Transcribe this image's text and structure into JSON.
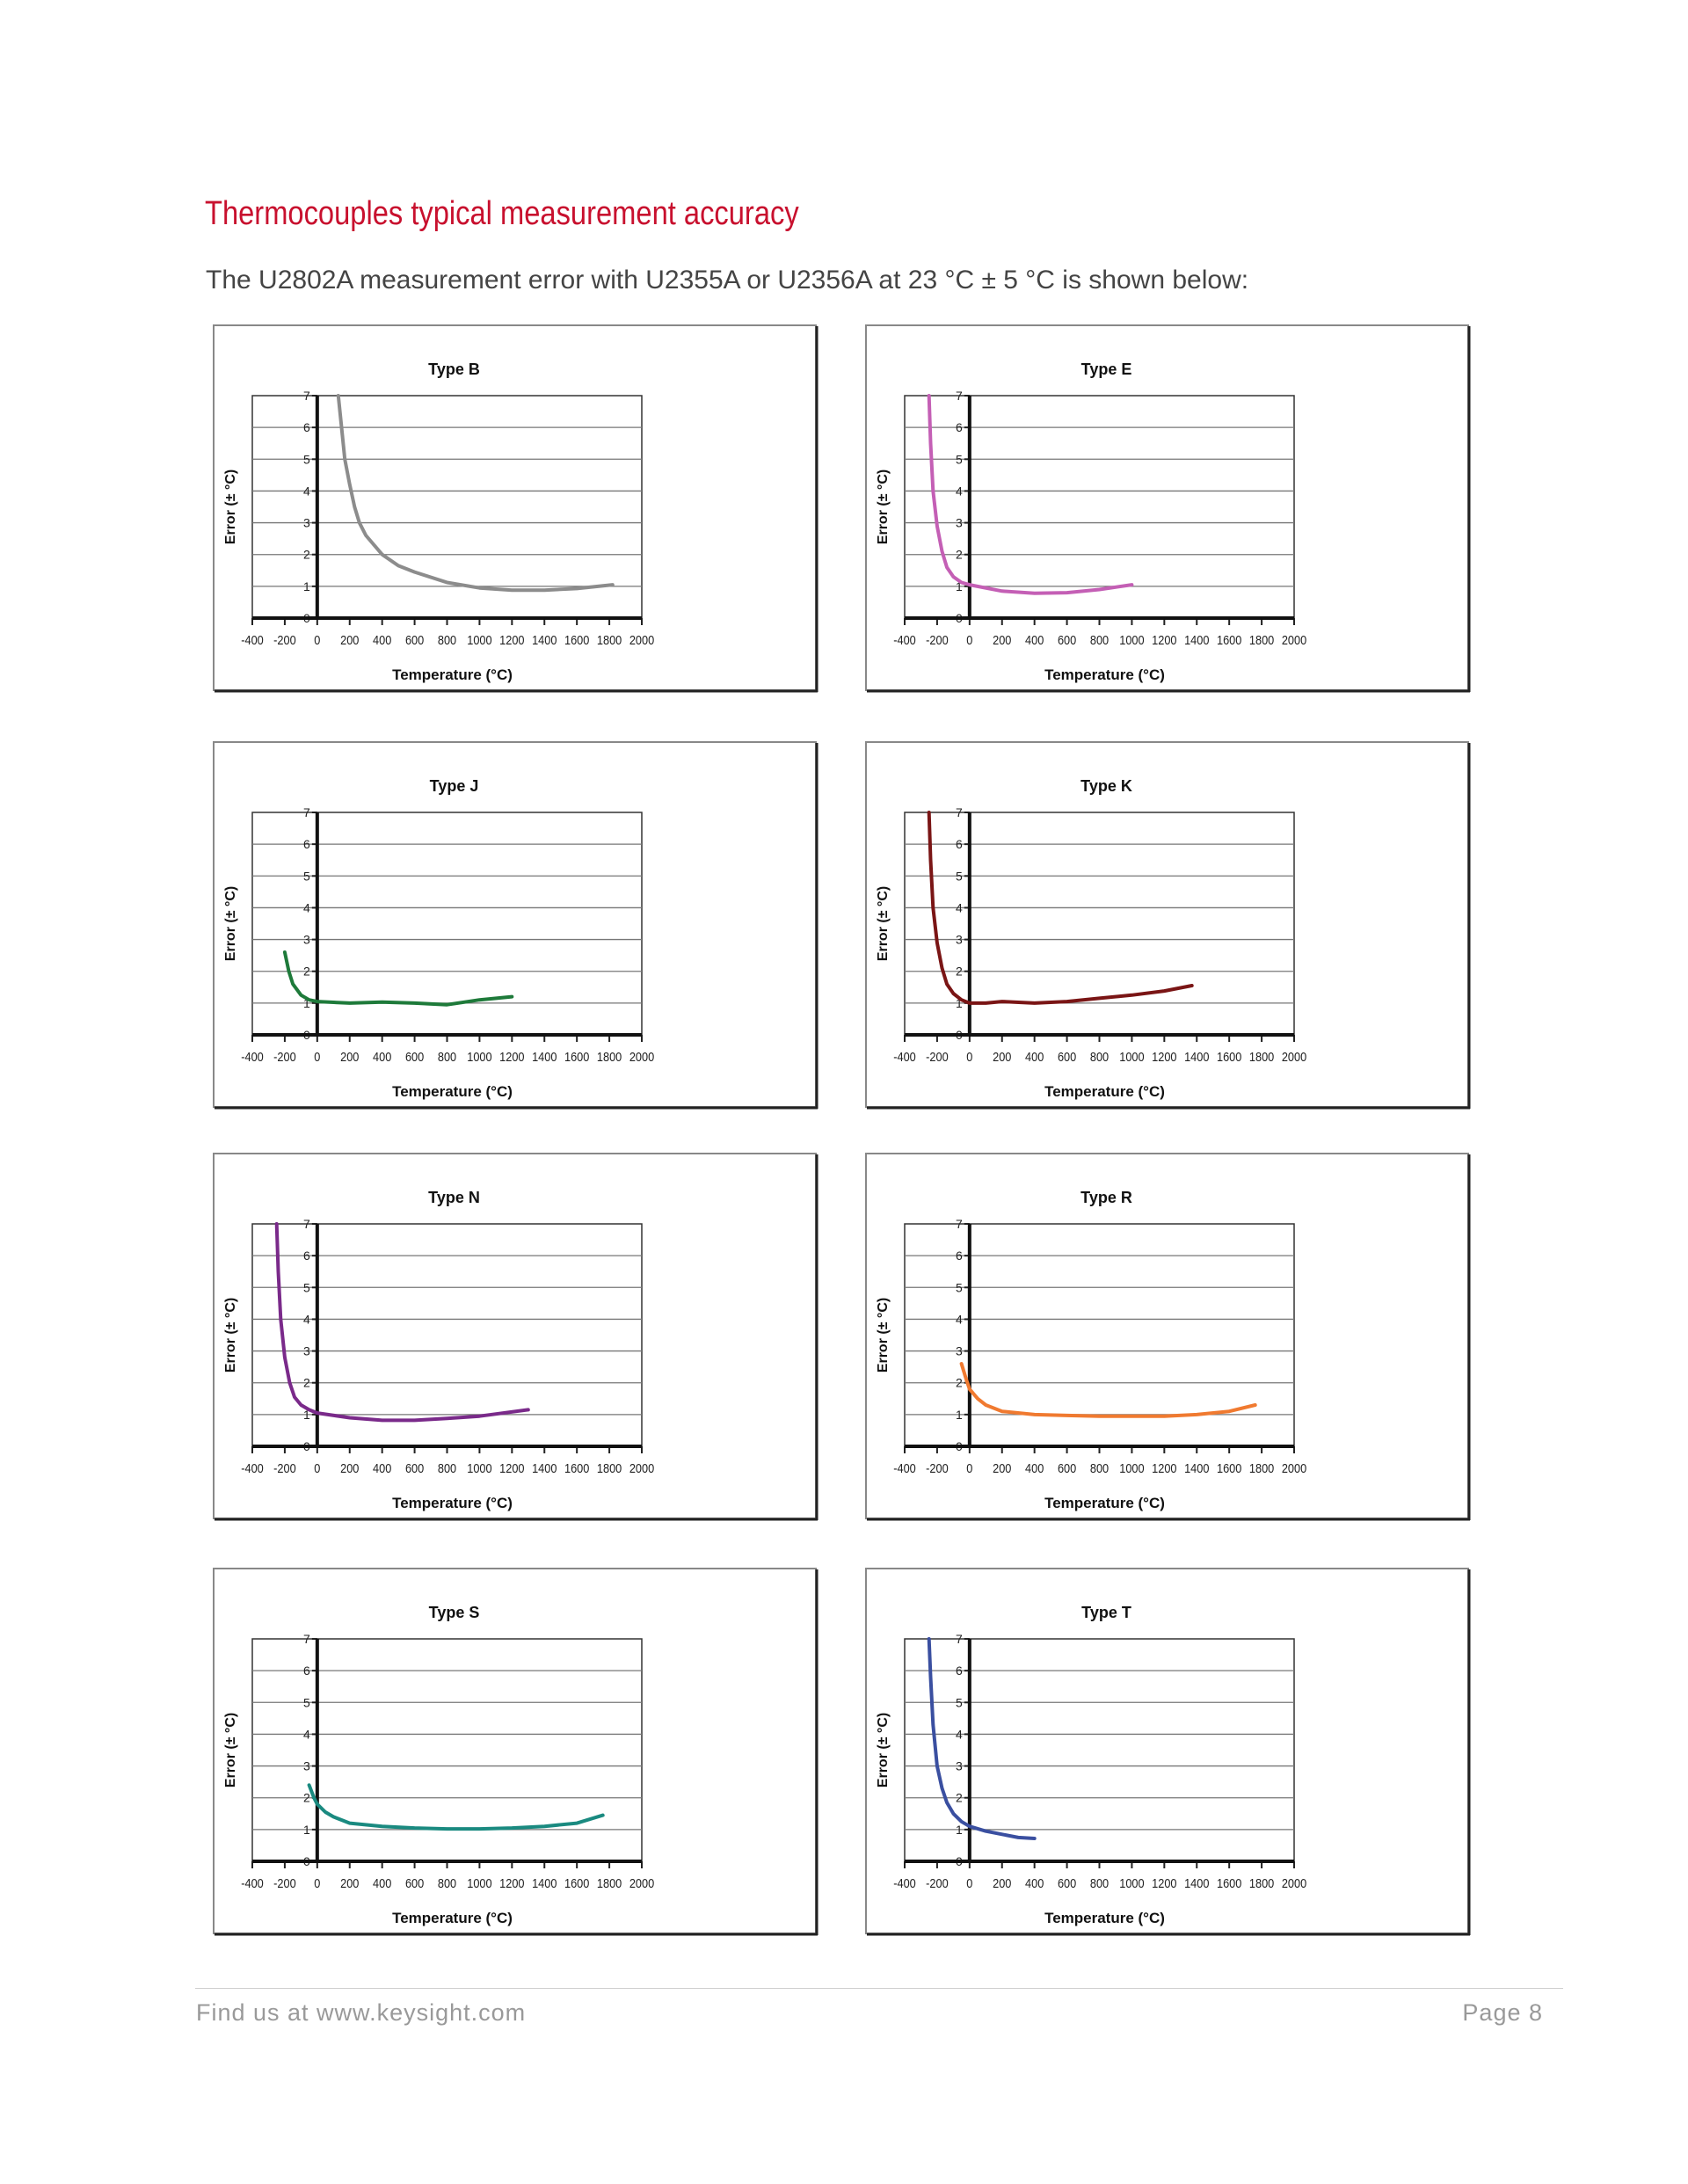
{
  "heading": "Thermocouples typical measurement accuracy",
  "intro": "The U2802A measurement error with U2355A or U2356A at 23 °C ± 5 °C is shown below:",
  "footer": {
    "left": "Find us at www.keysight.com",
    "right": "Page 8"
  },
  "chart_data": [
    {
      "type": "line",
      "title": "Type B",
      "xlabel": "Temperature (°C)",
      "ylabel": "Error (± °C)",
      "xlim": [
        -400,
        2000
      ],
      "ylim": [
        0,
        7
      ],
      "grid": true,
      "xticks": [
        "-400",
        "-200",
        "0",
        "200",
        "400",
        "600",
        "800",
        "1000",
        "1200",
        "1400",
        "1600",
        "1800",
        "2000"
      ],
      "yticks": [
        "0",
        "1",
        "2",
        "3",
        "4",
        "5",
        "6",
        "7"
      ],
      "color": "#8c8c8c",
      "x": [
        130,
        150,
        170,
        200,
        230,
        260,
        300,
        400,
        500,
        600,
        800,
        1000,
        1200,
        1400,
        1600,
        1820
      ],
      "y": [
        7,
        6,
        5,
        4.2,
        3.5,
        3,
        2.6,
        2,
        1.65,
        1.45,
        1.12,
        0.95,
        0.88,
        0.88,
        0.93,
        1.05
      ]
    },
    {
      "type": "line",
      "title": "Type E",
      "xlabel": "Temperature (°C)",
      "ylabel": "Error (± °C)",
      "xlim": [
        -400,
        2000
      ],
      "ylim": [
        0,
        7
      ],
      "grid": true,
      "xticks": [
        "-400",
        "-200",
        "0",
        "200",
        "400",
        "600",
        "800",
        "1000",
        "1200",
        "1400",
        "1600",
        "1800",
        "2000"
      ],
      "yticks": [
        "0",
        "1",
        "2",
        "3",
        "4",
        "5",
        "6",
        "7"
      ],
      "color": "#c45fb5",
      "x": [
        -250,
        -240,
        -225,
        -200,
        -170,
        -140,
        -100,
        -50,
        0,
        200,
        400,
        600,
        800,
        1000
      ],
      "y": [
        7,
        5.5,
        4,
        2.9,
        2.1,
        1.6,
        1.3,
        1.12,
        1.05,
        0.85,
        0.78,
        0.8,
        0.9,
        1.05
      ]
    },
    {
      "type": "line",
      "title": "Type J",
      "xlabel": "Temperature (°C)",
      "ylabel": "Error (± °C)",
      "xlim": [
        -400,
        2000
      ],
      "ylim": [
        0,
        7
      ],
      "grid": true,
      "xticks": [
        "-400",
        "-200",
        "0",
        "200",
        "400",
        "600",
        "800",
        "1000",
        "1200",
        "1400",
        "1600",
        "1800",
        "2000"
      ],
      "yticks": [
        "0",
        "1",
        "2",
        "3",
        "4",
        "5",
        "6",
        "7"
      ],
      "color": "#1e7a3a",
      "x": [
        -200,
        -175,
        -150,
        -100,
        -50,
        0,
        200,
        400,
        600,
        800,
        1000,
        1200
      ],
      "y": [
        2.6,
        2.0,
        1.6,
        1.25,
        1.1,
        1.05,
        1.0,
        1.03,
        1.0,
        0.95,
        1.1,
        1.2
      ]
    },
    {
      "type": "line",
      "title": "Type K",
      "xlabel": "Temperature (°C)",
      "ylabel": "Error (± °C)",
      "xlim": [
        -400,
        2000
      ],
      "ylim": [
        0,
        7
      ],
      "grid": true,
      "xticks": [
        "-400",
        "-200",
        "0",
        "200",
        "400",
        "600",
        "800",
        "1000",
        "1200",
        "1400",
        "1600",
        "1800",
        "2000"
      ],
      "yticks": [
        "0",
        "1",
        "2",
        "3",
        "4",
        "5",
        "6",
        "7"
      ],
      "color": "#7a1515",
      "x": [
        -250,
        -240,
        -225,
        -200,
        -170,
        -140,
        -100,
        -50,
        0,
        100,
        200,
        400,
        600,
        800,
        1000,
        1200,
        1370
      ],
      "y": [
        7,
        5.5,
        4,
        2.9,
        2.1,
        1.6,
        1.3,
        1.1,
        1.0,
        1.0,
        1.05,
        1.0,
        1.05,
        1.15,
        1.25,
        1.38,
        1.55
      ]
    },
    {
      "type": "line",
      "title": "Type N",
      "xlabel": "Temperature (°C)",
      "ylabel": "Error (± °C)",
      "xlim": [
        -400,
        2000
      ],
      "ylim": [
        0,
        7
      ],
      "grid": true,
      "xticks": [
        "-400",
        "-200",
        "0",
        "200",
        "400",
        "600",
        "800",
        "1000",
        "1200",
        "1400",
        "1600",
        "1800",
        "2000"
      ],
      "yticks": [
        "0",
        "1",
        "2",
        "3",
        "4",
        "5",
        "6",
        "7"
      ],
      "color": "#7a2a8a",
      "x": [
        -250,
        -240,
        -225,
        -200,
        -170,
        -140,
        -100,
        -50,
        0,
        200,
        400,
        600,
        800,
        1000,
        1300
      ],
      "y": [
        7,
        5.5,
        4,
        2.8,
        2.0,
        1.55,
        1.3,
        1.15,
        1.05,
        0.9,
        0.82,
        0.82,
        0.88,
        0.95,
        1.15
      ]
    },
    {
      "type": "line",
      "title": "Type R",
      "xlabel": "Temperature (°C)",
      "ylabel": "Error (± °C)",
      "xlim": [
        -400,
        2000
      ],
      "ylim": [
        0,
        7
      ],
      "grid": true,
      "xticks": [
        "-400",
        "-200",
        "0",
        "200",
        "400",
        "600",
        "800",
        "1000",
        "1200",
        "1400",
        "1600",
        "1800",
        "2000"
      ],
      "yticks": [
        "0",
        "1",
        "2",
        "3",
        "4",
        "5",
        "6",
        "7"
      ],
      "color": "#f07a30",
      "x": [
        -50,
        -20,
        0,
        50,
        100,
        200,
        400,
        600,
        800,
        1000,
        1200,
        1400,
        1600,
        1760
      ],
      "y": [
        2.6,
        2.1,
        1.8,
        1.5,
        1.3,
        1.1,
        1.0,
        0.97,
        0.95,
        0.95,
        0.95,
        1.0,
        1.1,
        1.3
      ]
    },
    {
      "type": "line",
      "title": "Type S",
      "xlabel": "Temperature (°C)",
      "ylabel": "Error (± °C)",
      "xlim": [
        -400,
        2000
      ],
      "ylim": [
        0,
        7
      ],
      "grid": true,
      "xticks": [
        "-400",
        "-200",
        "0",
        "200",
        "400",
        "600",
        "800",
        "1000",
        "1200",
        "1400",
        "1600",
        "1800",
        "2000"
      ],
      "yticks": [
        "0",
        "1",
        "2",
        "3",
        "4",
        "5",
        "6",
        "7"
      ],
      "color": "#1a8a80",
      "x": [
        -50,
        -20,
        0,
        50,
        100,
        200,
        400,
        600,
        800,
        1000,
        1200,
        1400,
        1600,
        1760
      ],
      "y": [
        2.4,
        2.0,
        1.8,
        1.55,
        1.4,
        1.2,
        1.1,
        1.05,
        1.02,
        1.02,
        1.05,
        1.1,
        1.2,
        1.45
      ]
    },
    {
      "type": "line",
      "title": "Type T",
      "xlabel": "Temperature (°C)",
      "ylabel": "Error (± °C)",
      "xlim": [
        -400,
        2000
      ],
      "ylim": [
        0,
        7
      ],
      "grid": true,
      "xticks": [
        "-400",
        "-200",
        "0",
        "200",
        "400",
        "600",
        "800",
        "1000",
        "1200",
        "1400",
        "1600",
        "1800",
        "2000"
      ],
      "yticks": [
        "0",
        "1",
        "2",
        "3",
        "4",
        "5",
        "6",
        "7"
      ],
      "color": "#3a4fa0",
      "x": [
        -250,
        -240,
        -225,
        -200,
        -170,
        -140,
        -100,
        -50,
        0,
        100,
        200,
        300,
        400
      ],
      "y": [
        7,
        5.8,
        4.3,
        3.0,
        2.3,
        1.85,
        1.5,
        1.25,
        1.1,
        0.95,
        0.85,
        0.75,
        0.72
      ]
    }
  ]
}
